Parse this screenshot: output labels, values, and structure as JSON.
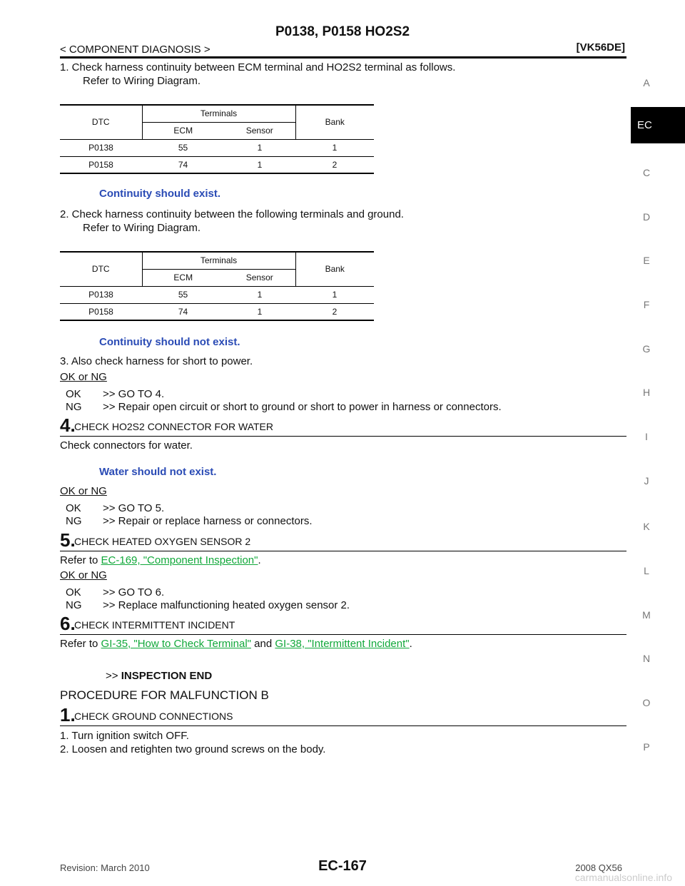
{
  "header": {
    "title": "P0138, P0158 HO2S2",
    "section": "< COMPONENT DIAGNOSIS >",
    "engine": "[VK56DE]"
  },
  "side_index": {
    "letters": [
      "A",
      "C",
      "D",
      "E",
      "F",
      "G",
      "H",
      "I",
      "J",
      "K",
      "L",
      "M",
      "N",
      "O",
      "P"
    ],
    "active": "EC"
  },
  "content": {
    "check1_line1": "1. Check harness continuity between ECM terminal and HO2S2 terminal as follows.",
    "check1_line2": "Refer to Wiring Diagram.",
    "table1": {
      "dtc_header": "DTC",
      "terminals_header": "Terminals",
      "bank_header": "Bank",
      "ecm_header": "ECM",
      "sensor_header": "Sensor",
      "rows": [
        {
          "dtc": "P0138",
          "ecm": "55",
          "sensor": "1",
          "bank": "1"
        },
        {
          "dtc": "P0158",
          "ecm": "74",
          "sensor": "1",
          "bank": "2"
        }
      ]
    },
    "spec1": "Continuity should exist.",
    "check2_line1": "2. Check harness continuity between the following terminals and ground.",
    "check2_line2": "Refer to Wiring Diagram.",
    "table2": {
      "dtc_header": "DTC",
      "terminals_header": "Terminals",
      "bank_header": "Bank",
      "ecm_header": "ECM",
      "sensor_header": "Sensor",
      "rows": [
        {
          "dtc": "P0138",
          "ecm": "55",
          "sensor": "1",
          "bank": "1"
        },
        {
          "dtc": "P0158",
          "ecm": "74",
          "sensor": "1",
          "bank": "2"
        }
      ]
    },
    "spec2": "Continuity should not exist.",
    "check3": "3. Also check harness for short to power.",
    "okng_label": "OK or NG",
    "result3": {
      "ok_code": "OK",
      "ok_text": ">> GO TO 4.",
      "ng_code": "NG",
      "ng_text": ">> Repair open circuit or short to ground or short to power in harness or connectors."
    },
    "step4": {
      "num": "4.",
      "label": "CHECK HO2S2 CONNECTOR FOR WATER"
    },
    "step4_text": "Check connectors for water.",
    "spec4": "Water should not exist.",
    "result4": {
      "ok_code": "OK",
      "ok_text": ">> GO TO 5.",
      "ng_code": "NG",
      "ng_text": ">> Repair or replace harness or connectors."
    },
    "step5": {
      "num": "5.",
      "label": "CHECK HEATED OXYGEN SENSOR 2"
    },
    "step5_prefix": "Refer to ",
    "step5_link": "EC-169, \"Component Inspection\"",
    "step5_suffix": ".",
    "result5": {
      "ok_code": "OK",
      "ok_text": ">> GO TO 6.",
      "ng_code": "NG",
      "ng_text": ">> Replace malfunctioning heated oxygen sensor 2."
    },
    "step6": {
      "num": "6.",
      "label": "CHECK INTERMITTENT INCIDENT"
    },
    "step6_prefix": "Refer to ",
    "step6_link1": "GI-35, \"How to Check Terminal\"",
    "step6_mid": " and ",
    "step6_link2": "GI-38, \"Intermittent Incident\"",
    "step6_suffix": ".",
    "end_arrow": ">>",
    "end_text": "INSPECTION END",
    "procedure_b": "PROCEDURE FOR MALFUNCTION B",
    "stepb1": {
      "num": "1.",
      "label": "CHECK GROUND CONNECTIONS"
    },
    "b1_line1": "1. Turn ignition switch OFF.",
    "b1_line2": "2. Loosen and retighten two ground screws on the body."
  },
  "footer": {
    "revision": "Revision: March 2010",
    "page": "EC-167",
    "model": "2008 QX56",
    "watermark": "carmanualsonline.info"
  }
}
